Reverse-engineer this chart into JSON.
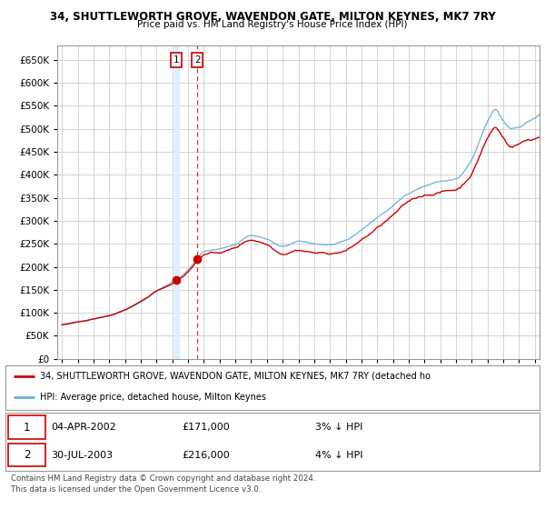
{
  "title1": "34, SHUTTLEWORTH GROVE, WAVENDON GATE, MILTON KEYNES, MK7 7RY",
  "title2": "Price paid vs. HM Land Registry's House Price Index (HPI)",
  "ylim": [
    0,
    680000
  ],
  "yticks": [
    0,
    50000,
    100000,
    150000,
    200000,
    250000,
    300000,
    350000,
    400000,
    450000,
    500000,
    550000,
    600000,
    650000
  ],
  "xlim_start": 1994.7,
  "xlim_end": 2025.3,
  "legend_line1": "34, SHUTTLEWORTH GROVE, WAVENDON GATE, MILTON KEYNES, MK7 7RY (detached ho",
  "legend_line2": "HPI: Average price, detached house, Milton Keynes",
  "transaction1_date": "04-APR-2002",
  "transaction1_price": "£171,000",
  "transaction1_hpi": "3% ↓ HPI",
  "transaction1_x": 2002.26,
  "transaction1_y": 171000,
  "transaction2_date": "30-JUL-2003",
  "transaction2_price": "£216,000",
  "transaction2_hpi": "4% ↓ HPI",
  "transaction2_x": 2003.58,
  "transaction2_y": 216000,
  "hpi_color": "#6baed6",
  "price_color": "#cc0000",
  "annotation_color": "#cc0000",
  "shade_color": "#ddeeff",
  "grid_color": "#cccccc",
  "footer": "Contains HM Land Registry data © Crown copyright and database right 2024.\nThis data is licensed under the Open Government Licence v3.0.",
  "background_color": "#ffffff"
}
